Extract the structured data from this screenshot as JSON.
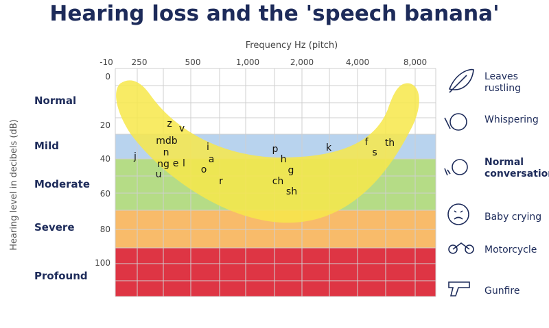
{
  "title": "Hearing loss and the 'speech banana'",
  "x_axis": {
    "label": "Frequency Hz (pitch)",
    "ticks": [
      "-10",
      "250",
      "500",
      "1,000",
      "2,000",
      "4,000",
      "8,000"
    ]
  },
  "y_axis": {
    "label": "Hearing level in decibels (dB)",
    "ticks": [
      "0",
      "20",
      "40",
      "60",
      "80",
      "100"
    ]
  },
  "levels": [
    "Normal",
    "Mild",
    "Moderate",
    "Severe",
    "Profound"
  ],
  "sounds": [
    "z",
    "v",
    "mdb",
    "n",
    "i",
    "j",
    "a",
    "ng",
    "e",
    "l",
    "o",
    "u",
    "r",
    "p",
    "h",
    "g",
    "ch",
    "sh",
    "k",
    "f",
    "s",
    "th"
  ],
  "examples": [
    "Leaves rustling",
    "Whispering",
    "Normal conversation",
    "Baby crying",
    "Motorcycle",
    "Gunfire"
  ]
}
